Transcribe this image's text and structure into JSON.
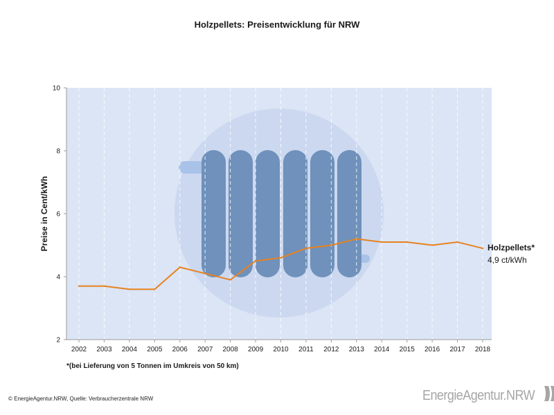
{
  "title": "Holzpellets: Preisentwicklung für NRW",
  "footnote": "*(bei Lieferung von 5 Tonnen im Umkreis von 50 km)",
  "copyright": "© EnergieAgentur.NRW, Quelle: Verbraucherzentrale NRW",
  "brand": "EnergieAgentur.NRW",
  "colors": {
    "plot_background": "#dbe5f5",
    "line": "#e8821e",
    "radiator": "#6f91bb",
    "circle": "#c8d6ee",
    "axis": "#9a9a9a"
  },
  "icons": [
    "radiator-illustration-icon",
    "energieagentur-logo-icon"
  ],
  "chart_data": {
    "type": "line",
    "title": "Holzpellets: Preisentwicklung für NRW",
    "xlabel": "",
    "ylabel": "Preise in Cent/kWh",
    "ylim": [
      2,
      10
    ],
    "yticks": [
      2,
      4,
      6,
      8,
      10
    ],
    "grid": "vertical dashed",
    "categories": [
      "2002",
      "2003",
      "2004",
      "2005",
      "2006",
      "2007",
      "2008",
      "2009",
      "2010",
      "2011",
      "2012",
      "2013",
      "2014",
      "2015",
      "2016",
      "2017",
      "2018"
    ],
    "series": [
      {
        "name": "Holzpellets*",
        "values": [
          3.7,
          3.7,
          3.6,
          3.6,
          4.3,
          4.1,
          3.9,
          4.5,
          4.6,
          4.9,
          5.0,
          5.2,
          5.1,
          5.1,
          5.0,
          5.1,
          4.9
        ]
      }
    ],
    "annotation": {
      "label": "Holzpellets*",
      "value_text": "4,9 ct/kWh"
    }
  }
}
